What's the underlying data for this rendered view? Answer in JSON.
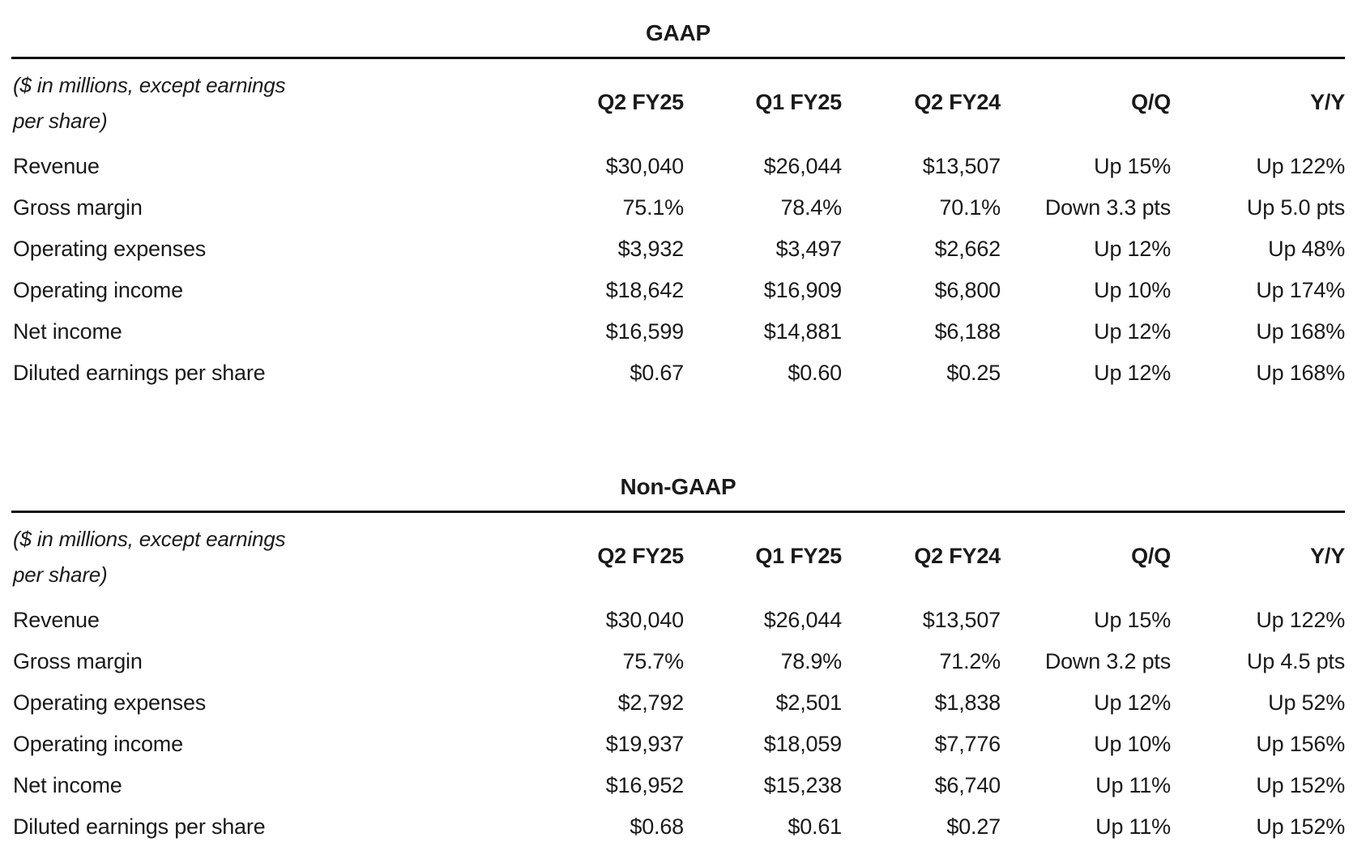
{
  "colors": {
    "background": "#ffffff",
    "text": "#1a1a1a",
    "rule": "#121212"
  },
  "tables": [
    {
      "title": "GAAP",
      "note_line1": "($ in millions, except earnings",
      "note_line2": "per share)",
      "columns": [
        "Q2 FY25",
        "Q1 FY25",
        "Q2 FY24",
        "Q/Q",
        "Y/Y"
      ],
      "rows": [
        {
          "label": "Revenue",
          "values": [
            "$30,040",
            "$26,044",
            "$13,507",
            "Up 15%",
            "Up 122%"
          ]
        },
        {
          "label": "Gross margin",
          "values": [
            "75.1%",
            "78.4%",
            "70.1%",
            "Down 3.3 pts",
            "Up 5.0 pts"
          ]
        },
        {
          "label": "Operating expenses",
          "values": [
            "$3,932",
            "$3,497",
            "$2,662",
            "Up 12%",
            "Up 48%"
          ]
        },
        {
          "label": "Operating income",
          "values": [
            "$18,642",
            "$16,909",
            "$6,800",
            "Up 10%",
            "Up 174%"
          ]
        },
        {
          "label": "Net income",
          "values": [
            "$16,599",
            "$14,881",
            "$6,188",
            "Up 12%",
            "Up 168%"
          ]
        },
        {
          "label": "Diluted earnings per share",
          "values": [
            "$0.67",
            "$0.60",
            "$0.25",
            "Up 12%",
            "Up 168%"
          ]
        }
      ]
    },
    {
      "title": "Non-GAAP",
      "note_line1": "($ in millions, except earnings",
      "note_line2": "per share)",
      "columns": [
        "Q2 FY25",
        "Q1 FY25",
        "Q2 FY24",
        "Q/Q",
        "Y/Y"
      ],
      "rows": [
        {
          "label": "Revenue",
          "values": [
            "$30,040",
            "$26,044",
            "$13,507",
            "Up 15%",
            "Up 122%"
          ]
        },
        {
          "label": "Gross margin",
          "values": [
            "75.7%",
            "78.9%",
            "71.2%",
            "Down 3.2 pts",
            "Up 4.5 pts"
          ]
        },
        {
          "label": "Operating expenses",
          "values": [
            "$2,792",
            "$2,501",
            "$1,838",
            "Up 12%",
            "Up 52%"
          ]
        },
        {
          "label": "Operating income",
          "values": [
            "$19,937",
            "$18,059",
            "$7,776",
            "Up 10%",
            "Up 156%"
          ]
        },
        {
          "label": "Net income",
          "values": [
            "$16,952",
            "$15,238",
            "$6,740",
            "Up 11%",
            "Up 152%"
          ]
        },
        {
          "label": "Diluted earnings per share",
          "values": [
            "$0.68",
            "$0.61",
            "$0.27",
            "Up 11%",
            "Up 152%"
          ]
        }
      ]
    }
  ]
}
